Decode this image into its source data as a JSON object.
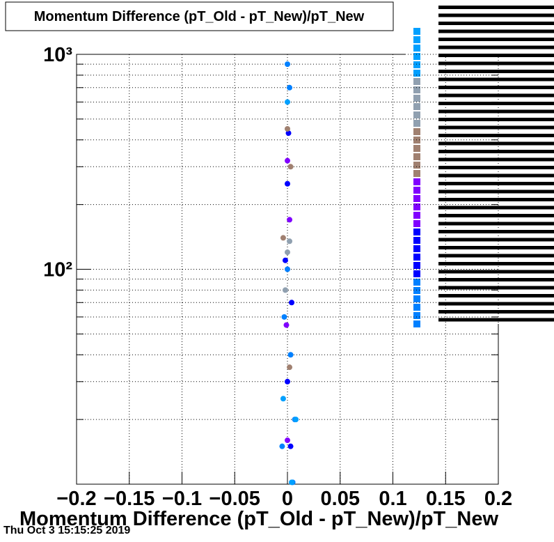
{
  "chart_data": {
    "type": "scatter",
    "title": "Momentum Difference (pT_Old - pT_New)/pT_New",
    "x_label": "Momentum Difference (pT_Old - pT_New)/pT_New",
    "footer": "Thu Oct  3 15:15:25 2019",
    "xlim": [
      -0.2,
      0.2
    ],
    "xticks": [
      {
        "value": -0.2,
        "label": "−0.2"
      },
      {
        "value": -0.15,
        "label": "−0.15"
      },
      {
        "value": -0.1,
        "label": "−0.1"
      },
      {
        "value": -0.05,
        "label": "−0.05"
      },
      0,
      0.05,
      0.1,
      0.15,
      0.2
    ],
    "ylim": [
      10,
      1000
    ],
    "yticks": [
      {
        "value": 100,
        "label": "10²"
      },
      {
        "value": 1000,
        "label": "10³"
      }
    ],
    "ylog": true,
    "grid": true,
    "series": [
      {
        "color": "#0080ff",
        "x": [
          0,
          0.002,
          0,
          -0.003,
          0.003,
          0.007,
          -0.005,
          0.005
        ],
        "values": [
          900,
          700,
          100,
          60,
          40,
          20,
          15,
          10.2
        ]
      },
      {
        "color": "#0000ff",
        "x": [
          0.001,
          0,
          -0.002,
          0.004,
          0,
          0.003
        ],
        "values": [
          430,
          250,
          110,
          70,
          30,
          15
        ]
      },
      {
        "color": "#8000ff",
        "x": [
          0,
          0.002,
          -0.001,
          0
        ],
        "values": [
          320,
          170,
          55,
          16
        ]
      },
      {
        "color": "#a08070",
        "x": [
          0,
          0.003,
          -0.004,
          0.002
        ],
        "values": [
          450,
          300,
          140,
          35
        ]
      },
      {
        "color": "#90a0b0",
        "x": [
          0,
          0.002,
          -0.002
        ],
        "values": [
          120,
          135,
          80
        ]
      },
      {
        "color": "#00a0ff",
        "x": [
          0.004,
          -0.004,
          0.008,
          0
        ],
        "values": [
          10.2,
          25,
          20,
          600
        ]
      }
    ]
  }
}
